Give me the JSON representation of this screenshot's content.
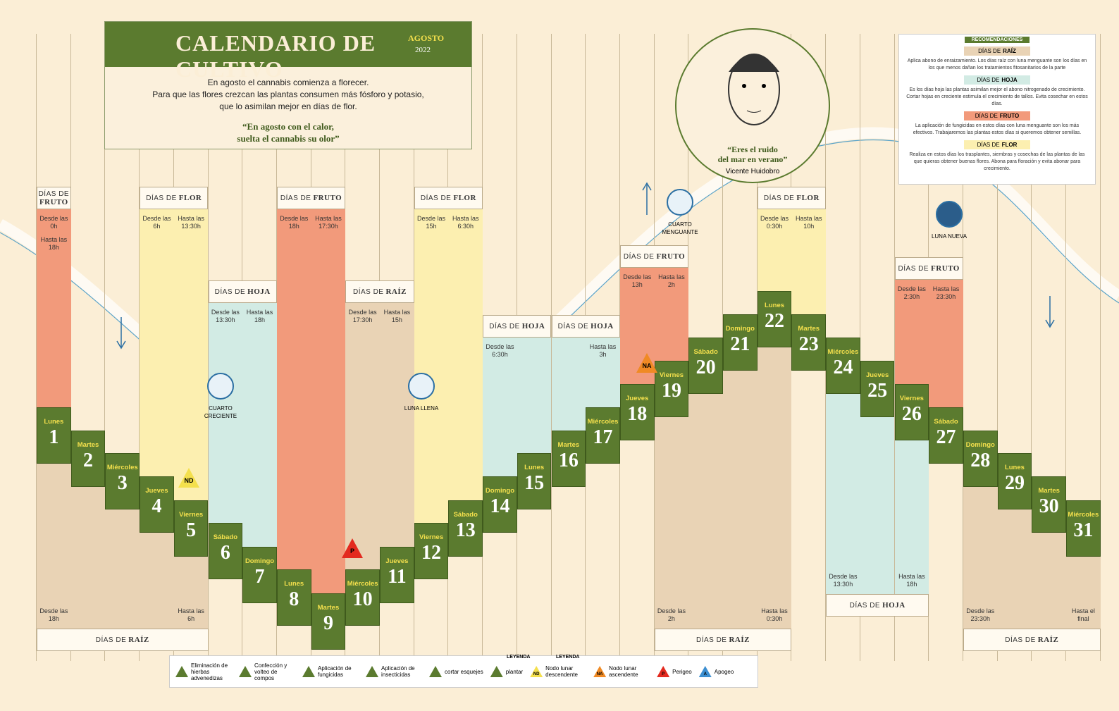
{
  "header": {
    "title": "CALENDARIO DE CULTIVO",
    "month": "AGOSTO",
    "year": "2022",
    "intro": [
      "En agosto el cannabis comienza a florecer.",
      "Para que las flores crezcan las plantas consumen más fósforo y potasio,",
      "que lo asimilan mejor en días de flor."
    ],
    "quote": [
      "“En agosto con el calor,",
      "suelta el cannabis su olor”"
    ]
  },
  "portrait": {
    "quote": [
      "“Eres el ruido",
      "del mar en verano”"
    ],
    "author": "Vicente Huidobro"
  },
  "recommendations": {
    "title": "RECOMENDACIONES",
    "sections": [
      {
        "prefix": "DÍAS DE",
        "kind": "RAÍZ",
        "text": "Aplica abono de enraizamiento. Los días raíz con luna menguante son los días en los que menos dañan los tratamientos fitosanitarios de la parte"
      },
      {
        "prefix": "DÍAS DE",
        "kind": "HOJA",
        "text": "Es los días hoja las plantas asimilan mejor el abono nitrogenado de crecimiento. Cortar hojas en creciente estimula el crecimiento de tallos. Evita cosechar en estos días."
      },
      {
        "prefix": "DÍAS DE",
        "kind": "FRUTO",
        "text": "La aplicación de fungicidas en estos días con luna menguante son los más efectivos. Trabajaremos las plantas estos días si queremos obtener semillas."
      },
      {
        "prefix": "DÍAS DE",
        "kind": "FLOR",
        "text": "Realiza en estos días los trasplantes, siembras y cosechas de las plantas de las que quieras obtener buenas flores. Abona para floración y evita abonar para crecimiento."
      }
    ]
  },
  "days": [
    {
      "weekday": "Lunes",
      "number": 1
    },
    {
      "weekday": "Martes",
      "number": 2
    },
    {
      "weekday": "Miércoles",
      "number": 3
    },
    {
      "weekday": "Jueves",
      "number": 4
    },
    {
      "weekday": "Viernes",
      "number": 5
    },
    {
      "weekday": "Sábado",
      "number": 6
    },
    {
      "weekday": "Domingo",
      "number": 7
    },
    {
      "weekday": "Lunes",
      "number": 8
    },
    {
      "weekday": "Martes",
      "number": 9
    },
    {
      "weekday": "Miércoles",
      "number": 10
    },
    {
      "weekday": "Jueves",
      "number": 11
    },
    {
      "weekday": "Viernes",
      "number": 12
    },
    {
      "weekday": "Sábado",
      "number": 13
    },
    {
      "weekday": "Domingo",
      "number": 14
    },
    {
      "weekday": "Lunes",
      "number": 15
    },
    {
      "weekday": "Martes",
      "number": 16
    },
    {
      "weekday": "Miércoles",
      "number": 17
    },
    {
      "weekday": "Jueves",
      "number": 18
    },
    {
      "weekday": "Viernes",
      "number": 19
    },
    {
      "weekday": "Sábado",
      "number": 20
    },
    {
      "weekday": "Domingo",
      "number": 21
    },
    {
      "weekday": "Lunes",
      "number": 22
    },
    {
      "weekday": "Martes",
      "number": 23
    },
    {
      "weekday": "Miércoles",
      "number": 24
    },
    {
      "weekday": "Jueves",
      "number": 25
    },
    {
      "weekday": "Viernes",
      "number": 26
    },
    {
      "weekday": "Sábado",
      "number": 27
    },
    {
      "weekday": "Domingo",
      "number": 28
    },
    {
      "weekday": "Lunes",
      "number": 29
    },
    {
      "weekday": "Martes",
      "number": 30
    },
    {
      "weekday": "Miércoles",
      "number": 31
    }
  ],
  "bands": [
    {
      "prefix": "DÍAS DE",
      "kind": "FRUTO",
      "from": "Desde las 0h",
      "to": "Hasta las 18h"
    },
    {
      "prefix": "DÍAS DE",
      "kind": "FLOR",
      "from": "Desde las 6h",
      "to": "Hasta las 13:30h"
    },
    {
      "prefix": "DÍAS DE",
      "kind": "HOJA",
      "from": "Desde las 13:30h",
      "to": "Hasta las 18h"
    },
    {
      "prefix": "DÍAS DE",
      "kind": "FRUTO",
      "from": "Desde las 18h",
      "to": "Hasta las 17:30h"
    },
    {
      "prefix": "DÍAS DE",
      "kind": "RAÍZ",
      "from": "Desde las 17:30h",
      "to": "Hasta las 15h"
    },
    {
      "prefix": "DÍAS DE",
      "kind": "FLOR",
      "from": "Desde las 15h",
      "to": "Hasta las 6:30h"
    },
    {
      "prefix": "DÍAS DE",
      "kind": "HOJA",
      "from": "Desde las 6:30h"
    },
    {
      "prefix": "DÍAS DE",
      "kind": "HOJA",
      "to": "Hasta las 3h"
    },
    {
      "prefix": "DÍAS DE",
      "kind": "FRUTO",
      "from": "Desde las 13h",
      "to": "Hasta las 2h"
    },
    {
      "prefix": "DÍAS DE",
      "kind": "FLOR",
      "from": "Desde las 0:30h",
      "to": "Hasta las 10h"
    },
    {
      "prefix": "DÍAS DE",
      "kind": "FRUTO",
      "from": "Desde las 2:30h",
      "to": "Hasta las 23:30h"
    },
    {
      "prefix": "DÍAS DE",
      "kind": "RAÍZ",
      "from": "Desde las 18h",
      "to": "Hasta las 6h"
    },
    {
      "prefix": "DÍAS DE",
      "kind": "RAÍZ",
      "from": "Desde las 2h",
      "to": "Hasta las 0:30h"
    },
    {
      "prefix": "DÍAS DE",
      "kind": "HOJA",
      "from": "Desde las 13:30h",
      "to": "Hasta las 18h"
    },
    {
      "prefix": "DÍAS DE",
      "kind": "RAÍZ",
      "from": "Desde las 23:30h",
      "to": "Hasta el final"
    }
  ],
  "moons": [
    "CUARTO CRECIENTE",
    "LUNA LLENA",
    "CUARTO MENGUANTE",
    "LUNA NUEVA"
  ],
  "markers": [
    "ND",
    "P",
    "NA"
  ],
  "legend": {
    "titles": [
      "LEYENDA",
      "LEYENDA"
    ],
    "items": [
      {
        "symbol": "",
        "text": "Eliminación de hierbas advenedizas"
      },
      {
        "symbol": "",
        "text": "Confección y volteo de compos"
      },
      {
        "symbol": "",
        "text": "Aplicación de fungicidas"
      },
      {
        "symbol": "",
        "text": "Aplicación de insecticidas"
      },
      {
        "symbol": "",
        "text": "cortar esquejes"
      },
      {
        "symbol": "",
        "text": "plantar"
      },
      {
        "symbol": "ND",
        "text": "Nodo lunar descendente"
      },
      {
        "symbol": "NA",
        "text": "Nodo lunar ascendente"
      },
      {
        "symbol": "P",
        "text": "Perigeo"
      },
      {
        "symbol": "A",
        "text": "Apogeo"
      }
    ]
  }
}
